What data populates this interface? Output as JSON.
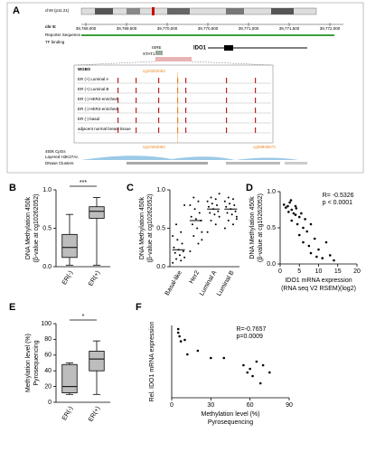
{
  "figure": {
    "panel_labels": [
      "A",
      "B",
      "C",
      "D",
      "E",
      "F"
    ],
    "browser": {
      "chromosome": "chr8 (p11.21)",
      "chr_label": "chr 8:",
      "coordinates": [
        "39,769,000",
        "39,769,500",
        "39,770,000",
        "39,770,500",
        "39,771,000",
        "39,771,500",
        "39,772,000"
      ],
      "tracks": [
        "Reporter Sequence",
        "TF binding"
      ],
      "tf": [
        "ISRE",
        "STAT1"
      ],
      "gene": "IDO1",
      "wgbs": "WGBS",
      "cpg_label": "cg10262052",
      "samples": [
        "ER (+) Luminal A",
        "ER (+) Luminal B",
        "ER (-) HER2-enriched",
        "ER (-) HER2-enriched",
        "ER (-) basal",
        "adjacent normal breast tissue"
      ],
      "bottom_tracks": [
        "450k CpGs",
        "Layered H3K27Ac",
        "DNase Clusters"
      ],
      "cpgs": [
        "cg10262052",
        "cg09845574"
      ]
    }
  },
  "chart_data": [
    {
      "type": "box",
      "categories": [
        "ER(-)",
        "ER(+)"
      ],
      "boxes": [
        {
          "min": 0.02,
          "q1": 0.12,
          "median": 0.25,
          "q3": 0.42,
          "max": 0.68
        },
        {
          "min": 0.02,
          "q1": 0.63,
          "median": 0.72,
          "q3": 0.78,
          "max": 0.9
        }
      ],
      "color": "#bdbdbd",
      "ylabel": [
        "DNA Methylation 450k",
        "(β-value at cg10262052)"
      ],
      "ylim": [
        0,
        1
      ],
      "yticks": [
        {
          "value": 0,
          "label": "0.0"
        },
        {
          "value": 0.5,
          "label": "0.5"
        },
        {
          "value": 1,
          "label": "1.0"
        }
      ],
      "annotations": [
        "***"
      ]
    },
    {
      "type": "strip",
      "categories": [
        "Basal-like",
        "Her2",
        "Luminal A",
        "Luminal B"
      ],
      "values": [
        [
          0.05,
          0.08,
          0.1,
          0.12,
          0.15,
          0.18,
          0.2,
          0.22,
          0.25,
          0.3,
          0.35,
          0.4,
          0.45,
          0.55,
          0.8
        ],
        [
          0.2,
          0.3,
          0.4,
          0.45,
          0.5,
          0.55,
          0.6,
          0.62,
          0.65,
          0.7,
          0.75,
          0.8,
          0.85,
          0.9,
          0.35
        ],
        [
          0.45,
          0.55,
          0.6,
          0.65,
          0.68,
          0.7,
          0.72,
          0.75,
          0.78,
          0.8,
          0.82,
          0.85,
          0.88,
          0.9,
          0.95
        ],
        [
          0.5,
          0.55,
          0.6,
          0.65,
          0.68,
          0.7,
          0.72,
          0.75,
          0.78,
          0.8,
          0.82,
          0.85,
          0.88,
          0.9,
          0.62
        ]
      ],
      "means": [
        0.22,
        0.6,
        0.75,
        0.75
      ],
      "color": "#000000",
      "ylabel": [
        "DNA Methylation 450k",
        "(β-value at cg10262052)"
      ],
      "ylim": [
        0,
        1
      ],
      "yticks": [
        {
          "value": 0,
          "label": "0.0"
        },
        {
          "value": 0.5,
          "label": "0.5"
        },
        {
          "value": 1,
          "label": "1.0"
        }
      ]
    },
    {
      "type": "scatter",
      "x": [
        1,
        1.5,
        2,
        2.2,
        2.5,
        3,
        3,
        3.5,
        4,
        4,
        4.5,
        5,
        5,
        5.5,
        6,
        6,
        6.5,
        7,
        7.5,
        8,
        8,
        9,
        9.5,
        10,
        11,
        12,
        13,
        14,
        2.8,
        4.2
      ],
      "values": [
        0.82,
        0.78,
        0.8,
        0.72,
        0.85,
        0.75,
        0.6,
        0.7,
        0.68,
        0.8,
        0.55,
        0.65,
        0.4,
        0.7,
        0.5,
        0.3,
        0.62,
        0.45,
        0.25,
        0.55,
        0.15,
        0.35,
        0.1,
        0.2,
        0.08,
        0.3,
        0.12,
        0.05,
        0.88,
        0.77
      ],
      "color": "#000000",
      "ylabel": [
        "DNA Methylation 450k",
        "(β-value at cg10262052)"
      ],
      "xlabel": [
        "IDO1 mRNA expression",
        "(RNA seq V2 RSEM)(log2)"
      ],
      "xlim": [
        0,
        20
      ],
      "xticks": [
        0,
        5,
        10,
        15,
        20
      ],
      "ylim": [
        0,
        1
      ],
      "yticks": [
        {
          "value": 0,
          "label": "0.0"
        },
        {
          "value": 0.5,
          "label": "0.5"
        },
        {
          "value": 1,
          "label": "1.0"
        }
      ],
      "annotations": [
        "R= -0.5326",
        "p < 0.0001"
      ]
    },
    {
      "type": "box",
      "categories": [
        "ER(-)",
        "ER(+)"
      ],
      "boxes": [
        {
          "min": 10,
          "q1": 12,
          "median": 20,
          "q3": 48,
          "max": 50
        },
        {
          "min": 10,
          "q1": 40,
          "median": 55,
          "q3": 65,
          "max": 78
        }
      ],
      "color": "#bdbdbd",
      "ylabel": [
        "Methylation level (%)",
        "Pyrosequencing"
      ],
      "ylim": [
        0,
        100
      ],
      "yticks": [
        0,
        20,
        40,
        60,
        80,
        100
      ],
      "annotations": [
        "*"
      ]
    },
    {
      "type": "scatter",
      "x": [
        5,
        5,
        6,
        7,
        10,
        12,
        20,
        30,
        40,
        55,
        58,
        60,
        62,
        65,
        68,
        70,
        75
      ],
      "values": [
        0.95,
        0.9,
        0.85,
        0.78,
        0.8,
        0.6,
        0.65,
        0.55,
        0.55,
        0.45,
        0.35,
        0.4,
        0.3,
        0.5,
        0.2,
        0.45,
        0.35
      ],
      "color": "#000000",
      "ylabel": [
        "Rel. IDO1 mRNA expression"
      ],
      "xlabel": [
        "Methylation level (%)",
        "Pyrosequencing"
      ],
      "xlim": [
        0,
        90
      ],
      "xticks": [
        0,
        30,
        60,
        90
      ],
      "ylim": [
        0,
        1
      ],
      "annotations": [
        "R=-0.7657",
        "p=0.0009"
      ]
    }
  ]
}
